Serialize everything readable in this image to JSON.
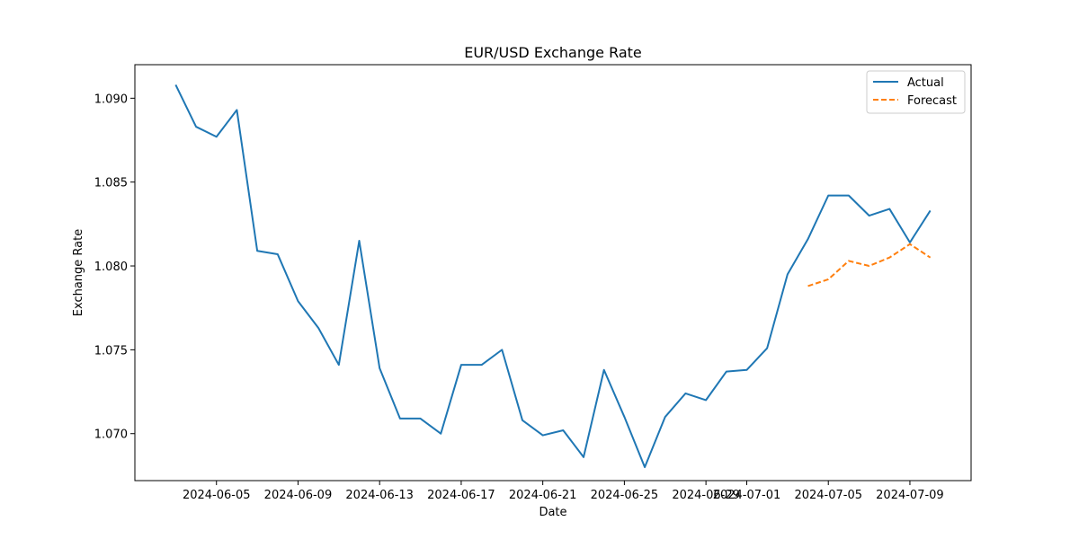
{
  "chart_data": {
    "type": "line",
    "title": "EUR/USD Exchange Rate",
    "xlabel": "Date",
    "ylabel": "Exchange Rate",
    "xlim": [
      "2024-06-01",
      "2024-07-12"
    ],
    "ylim": [
      1.0672,
      1.092
    ],
    "x_ticks": [
      "2024-06-05",
      "2024-06-09",
      "2024-06-13",
      "2024-06-17",
      "2024-06-21",
      "2024-06-25",
      "2024-06-29",
      "2024-07-01",
      "2024-07-05",
      "2024-07-09"
    ],
    "y_ticks": [
      "1.070",
      "1.075",
      "1.080",
      "1.085",
      "1.090"
    ],
    "grid": false,
    "legend": "top-right",
    "series": [
      {
        "name": "Actual",
        "color": "#1f77b4",
        "style": "solid",
        "points": [
          [
            "2024-06-03",
            1.0908
          ],
          [
            "2024-06-04",
            1.0883
          ],
          [
            "2024-06-05",
            1.0877
          ],
          [
            "2024-06-06",
            1.0893
          ],
          [
            "2024-06-07",
            1.0809
          ],
          [
            "2024-06-08",
            1.0807
          ],
          [
            "2024-06-09",
            1.0779
          ],
          [
            "2024-06-10",
            1.0763
          ],
          [
            "2024-06-11",
            1.0741
          ],
          [
            "2024-06-12",
            1.0815
          ],
          [
            "2024-06-13",
            1.0739
          ],
          [
            "2024-06-14",
            1.0709
          ],
          [
            "2024-06-15",
            1.0709
          ],
          [
            "2024-06-16",
            1.07
          ],
          [
            "2024-06-17",
            1.0741
          ],
          [
            "2024-06-18",
            1.0741
          ],
          [
            "2024-06-19",
            1.075
          ],
          [
            "2024-06-20",
            1.0708
          ],
          [
            "2024-06-21",
            1.0699
          ],
          [
            "2024-06-22",
            1.0702
          ],
          [
            "2024-06-23",
            1.0686
          ],
          [
            "2024-06-24",
            1.0738
          ],
          [
            "2024-06-25",
            1.071
          ],
          [
            "2024-06-26",
            1.068
          ],
          [
            "2024-06-27",
            1.071
          ],
          [
            "2024-06-28",
            1.0724
          ],
          [
            "2024-06-29",
            1.072
          ],
          [
            "2024-06-30",
            1.0737
          ],
          [
            "2024-07-01",
            1.0738
          ],
          [
            "2024-07-02",
            1.0751
          ],
          [
            "2024-07-03",
            1.0795
          ],
          [
            "2024-07-04",
            1.0816
          ],
          [
            "2024-07-05",
            1.0842
          ],
          [
            "2024-07-06",
            1.0842
          ],
          [
            "2024-07-07",
            1.083
          ],
          [
            "2024-07-08",
            1.0834
          ],
          [
            "2024-07-09",
            1.0814
          ],
          [
            "2024-07-10",
            1.0833
          ]
        ]
      },
      {
        "name": "Forecast",
        "color": "#ff7f0e",
        "style": "dashed",
        "points": [
          [
            "2024-07-04",
            1.0788
          ],
          [
            "2024-07-05",
            1.0792
          ],
          [
            "2024-07-06",
            1.0803
          ],
          [
            "2024-07-07",
            1.08
          ],
          [
            "2024-07-08",
            1.0805
          ],
          [
            "2024-07-09",
            1.0813
          ],
          [
            "2024-07-10",
            1.0805
          ]
        ]
      }
    ]
  }
}
